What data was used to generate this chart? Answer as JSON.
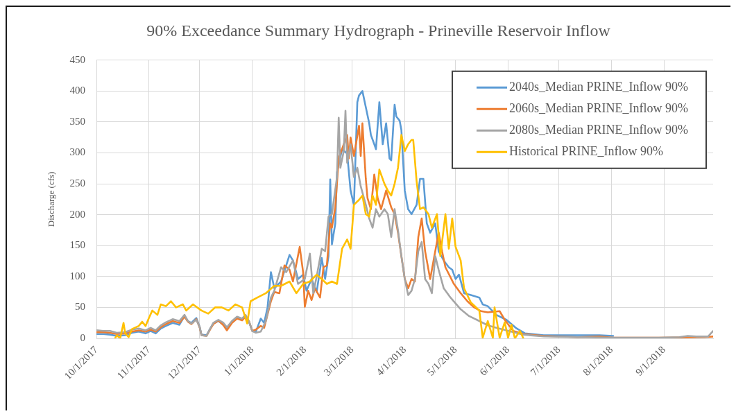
{
  "chart_data": {
    "type": "line",
    "title": "90% Exceedance Summary Hydrograph - Prineville Reservoir Inflow",
    "ylabel": "Discharge (cfs)",
    "xlim": [
      "2017-10-01",
      "2018-09-30"
    ],
    "xticks": [
      {
        "value": "2017-10-01",
        "label": "10/1/2017"
      },
      {
        "value": "2017-11-01",
        "label": "11/1/2017"
      },
      {
        "value": "2017-12-01",
        "label": "12/1/2017"
      },
      {
        "value": "2018-01-01",
        "label": "1/1/2018"
      },
      {
        "value": "2018-02-01",
        "label": "2/1/2018"
      },
      {
        "value": "2018-03-01",
        "label": "3/1/2018"
      },
      {
        "value": "2018-04-01",
        "label": "4/1/2018"
      },
      {
        "value": "2018-05-01",
        "label": "5/1/2018"
      },
      {
        "value": "2018-06-01",
        "label": "6/1/2018"
      },
      {
        "value": "2018-07-01",
        "label": "7/1/2018"
      },
      {
        "value": "2018-08-01",
        "label": "8/1/2018"
      },
      {
        "value": "2018-09-01",
        "label": "9/1/2018"
      }
    ],
    "ylim": [
      0,
      450
    ],
    "yticks": [
      0,
      50,
      100,
      150,
      200,
      250,
      300,
      350,
      400,
      450
    ],
    "grid": true,
    "legend": "top right",
    "series": [
      {
        "name": "2040s_Median PRINE_Inflow 90%",
        "color": "#5b9bd5",
        "x": [
          "2017-10-01",
          "2017-10-05",
          "2017-10-09",
          "2017-10-13",
          "2017-10-18",
          "2017-10-22",
          "2017-10-26",
          "2017-10-30",
          "2017-11-02",
          "2017-11-05",
          "2017-11-08",
          "2017-11-11",
          "2017-11-15",
          "2017-11-19",
          "2017-11-22",
          "2017-11-24",
          "2017-11-26",
          "2017-11-29",
          "2017-12-01",
          "2017-12-02",
          "2017-12-05",
          "2017-12-07",
          "2017-12-09",
          "2017-12-12",
          "2017-12-15",
          "2017-12-17",
          "2017-12-20",
          "2017-12-23",
          "2017-12-26",
          "2017-12-28",
          "2017-12-30",
          "2018-01-01",
          "2018-01-03",
          "2018-01-06",
          "2018-01-08",
          "2018-01-10",
          "2018-01-12",
          "2018-01-14",
          "2018-01-18",
          "2018-01-23",
          "2018-01-25",
          "2018-01-28",
          "2018-01-31",
          "2018-02-02",
          "2018-02-05",
          "2018-02-08",
          "2018-02-11",
          "2018-02-13",
          "2018-02-15",
          "2018-02-16",
          "2018-02-17",
          "2018-02-19",
          "2018-02-20",
          "2018-02-23",
          "2018-02-26",
          "2018-02-28",
          "2018-03-02",
          "2018-03-04",
          "2018-03-05",
          "2018-03-07",
          "2018-03-09",
          "2018-03-11",
          "2018-03-12",
          "2018-03-14",
          "2018-03-15",
          "2018-03-17",
          "2018-03-19",
          "2018-03-21",
          "2018-03-23",
          "2018-03-24",
          "2018-03-26",
          "2018-03-27",
          "2018-03-29",
          "2018-03-30",
          "2018-04-01",
          "2018-04-03",
          "2018-04-05",
          "2018-04-08",
          "2018-04-10",
          "2018-04-12",
          "2018-04-14",
          "2018-04-16",
          "2018-04-19",
          "2018-04-21",
          "2018-04-24",
          "2018-04-27",
          "2018-04-29",
          "2018-05-01",
          "2018-05-03",
          "2018-05-06",
          "2018-05-10",
          "2018-05-15",
          "2018-05-17",
          "2018-05-20",
          "2018-05-25",
          "2018-05-31",
          "2018-06-06",
          "2018-06-11",
          "2018-06-22",
          "2018-07-12",
          "2018-07-25",
          "2018-08-02"
        ],
        "values": [
          7,
          7,
          6,
          4,
          5,
          9,
          11,
          8,
          12,
          8,
          16,
          20,
          25,
          22,
          36,
          28,
          25,
          33,
          18,
          6,
          5,
          15,
          24,
          28,
          22,
          14,
          26,
          33,
          30,
          36,
          27,
          12,
          10,
          32,
          25,
          50,
          107,
          81,
          92,
          135,
          126,
          96,
          103,
          77,
          96,
          75,
          130,
          96,
          133,
          257,
          152,
          186,
          269,
          306,
          299,
          239,
          216,
          382,
          393,
          400,
          374,
          348,
          329,
          314,
          306,
          382,
          314,
          348,
          291,
          288,
          378,
          359,
          352,
          337,
          239,
          209,
          201,
          216,
          258,
          258,
          186,
          171,
          186,
          141,
          126,
          115,
          111,
          96,
          103,
          73,
          70,
          66,
          55,
          52,
          38,
          30,
          16,
          8,
          5,
          5,
          5,
          4
        ]
      },
      {
        "name": "2060s_Median PRINE_Inflow 90%",
        "color": "#ed7d31",
        "x": [
          "2017-10-01",
          "2017-10-05",
          "2017-10-09",
          "2017-10-13",
          "2017-10-18",
          "2017-10-22",
          "2017-10-26",
          "2017-10-30",
          "2017-11-02",
          "2017-11-05",
          "2017-11-08",
          "2017-11-11",
          "2017-11-15",
          "2017-11-19",
          "2017-11-22",
          "2017-11-24",
          "2017-11-26",
          "2017-11-29",
          "2017-12-01",
          "2017-12-02",
          "2017-12-05",
          "2017-12-07",
          "2017-12-09",
          "2017-12-12",
          "2017-12-15",
          "2017-12-17",
          "2017-12-20",
          "2017-12-23",
          "2017-12-26",
          "2017-12-28",
          "2017-12-30",
          "2018-01-01",
          "2018-01-03",
          "2018-01-06",
          "2018-01-08",
          "2018-01-12",
          "2018-01-14",
          "2018-01-17",
          "2018-01-20",
          "2018-01-23",
          "2018-01-25",
          "2018-01-29",
          "2018-01-31",
          "2018-02-01",
          "2018-02-03",
          "2018-02-05",
          "2018-02-07",
          "2018-02-10",
          "2018-02-12",
          "2018-02-14",
          "2018-02-16",
          "2018-02-17",
          "2018-02-19",
          "2018-02-21",
          "2018-02-24",
          "2018-02-26",
          "2018-02-27",
          "2018-02-28",
          "2018-03-02",
          "2018-03-05",
          "2018-03-06",
          "2018-03-07",
          "2018-03-09",
          "2018-03-10",
          "2018-03-12",
          "2018-03-14",
          "2018-03-16",
          "2018-03-18",
          "2018-03-21",
          "2018-03-24",
          "2018-03-26",
          "2018-03-28",
          "2018-03-30",
          "2018-04-01",
          "2018-04-03",
          "2018-04-05",
          "2018-04-07",
          "2018-04-09",
          "2018-04-11",
          "2018-04-13",
          "2018-04-16",
          "2018-04-19",
          "2018-04-21",
          "2018-04-23",
          "2018-04-25",
          "2018-04-30",
          "2018-05-04",
          "2018-05-08",
          "2018-05-12",
          "2018-05-16",
          "2018-05-20",
          "2018-05-27",
          "2018-05-30",
          "2018-06-04",
          "2018-06-10",
          "2018-06-22",
          "2018-07-12",
          "2018-07-25",
          "2018-08-02",
          "2018-08-29",
          "2018-09-25",
          "2018-09-30"
        ],
        "values": [
          10,
          10,
          9,
          7,
          8,
          11,
          13,
          11,
          14,
          11,
          18,
          23,
          28,
          25,
          35,
          27,
          23,
          31,
          17,
          5,
          4,
          14,
          23,
          29,
          21,
          13,
          25,
          32,
          29,
          35,
          28,
          12,
          14,
          20,
          17,
          60,
          75,
          73,
          118,
          111,
          92,
          148,
          107,
          51,
          77,
          62,
          81,
          66,
          115,
          118,
          186,
          179,
          212,
          291,
          314,
          329,
          291,
          325,
          295,
          344,
          295,
          348,
          258,
          227,
          209,
          265,
          227,
          209,
          239,
          212,
          201,
          171,
          133,
          96,
          81,
          96,
          92,
          164,
          194,
          141,
          96,
          141,
          171,
          141,
          115,
          88,
          73,
          60,
          50,
          44,
          42,
          44,
          30,
          12,
          7,
          4,
          2,
          3,
          1,
          1,
          2,
          3
        ]
      },
      {
        "name": "2080s_Median PRINE_Inflow 90%",
        "color": "#a5a5a5",
        "x": [
          "2017-10-01",
          "2017-10-05",
          "2017-10-09",
          "2017-10-13",
          "2017-10-18",
          "2017-10-22",
          "2017-10-26",
          "2017-10-30",
          "2017-11-02",
          "2017-11-05",
          "2017-11-08",
          "2017-11-11",
          "2017-11-15",
          "2017-11-19",
          "2017-11-22",
          "2017-11-24",
          "2017-11-26",
          "2017-11-29",
          "2017-12-01",
          "2017-12-02",
          "2017-12-05",
          "2017-12-07",
          "2017-12-09",
          "2017-12-12",
          "2017-12-15",
          "2017-12-17",
          "2017-12-20",
          "2017-12-23",
          "2017-12-26",
          "2017-12-28",
          "2017-12-30",
          "2018-01-01",
          "2018-01-03",
          "2018-01-06",
          "2018-01-09",
          "2018-01-12",
          "2018-01-14",
          "2018-01-18",
          "2018-01-21",
          "2018-01-25",
          "2018-01-28",
          "2018-02-01",
          "2018-02-04",
          "2018-02-06",
          "2018-02-08",
          "2018-02-11",
          "2018-02-13",
          "2018-02-15",
          "2018-02-17",
          "2018-02-20",
          "2018-02-21",
          "2018-02-22",
          "2018-02-24",
          "2018-02-25",
          "2018-02-26",
          "2018-02-28",
          "2018-03-02",
          "2018-03-04",
          "2018-03-06",
          "2018-03-09",
          "2018-03-11",
          "2018-03-13",
          "2018-03-15",
          "2018-03-17",
          "2018-03-20",
          "2018-03-22",
          "2018-03-24",
          "2018-03-26",
          "2018-03-28",
          "2018-03-30",
          "2018-04-01",
          "2018-04-03",
          "2018-04-05",
          "2018-04-07",
          "2018-04-09",
          "2018-04-11",
          "2018-04-13",
          "2018-04-15",
          "2018-04-17",
          "2018-04-19",
          "2018-04-21",
          "2018-04-24",
          "2018-04-28",
          "2018-05-04",
          "2018-05-09",
          "2018-05-15",
          "2018-05-20",
          "2018-05-25",
          "2018-05-31",
          "2018-06-10",
          "2018-06-22",
          "2018-07-12",
          "2018-08-02",
          "2018-08-29",
          "2018-09-10",
          "2018-09-15",
          "2018-09-20",
          "2018-09-27",
          "2018-09-30"
        ],
        "values": [
          13,
          12,
          12,
          9,
          10,
          14,
          16,
          13,
          17,
          13,
          21,
          26,
          31,
          28,
          38,
          28,
          24,
          30,
          18,
          5,
          4,
          15,
          25,
          30,
          25,
          18,
          28,
          35,
          32,
          38,
          28,
          12,
          9,
          11,
          28,
          66,
          77,
          115,
          107,
          126,
          88,
          96,
          137,
          73,
          100,
          145,
          141,
          197,
          201,
          261,
          357,
          276,
          303,
          368,
          284,
          314,
          261,
          276,
          246,
          216,
          194,
          179,
          209,
          197,
          209,
          201,
          164,
          209,
          175,
          133,
          96,
          70,
          77,
          96,
          141,
          156,
          96,
          88,
          73,
          133,
          111,
          81,
          66,
          47,
          36,
          28,
          21,
          17,
          13,
          6,
          3,
          2,
          1,
          1,
          2,
          4,
          3,
          3,
          12
        ]
      },
      {
        "name": "Historical PRINE_Inflow 90%",
        "color": "#ffc000",
        "x": [
          "2017-10-12",
          "2017-10-13",
          "2017-10-15",
          "2017-10-17",
          "2017-10-18",
          "2017-10-20",
          "2017-10-22",
          "2017-10-26",
          "2017-10-28",
          "2017-10-30",
          "2017-11-01",
          "2017-11-03",
          "2017-11-06",
          "2017-11-08",
          "2017-11-11",
          "2017-11-14",
          "2017-11-17",
          "2017-11-21",
          "2017-11-23",
          "2017-11-27",
          "2017-12-02",
          "2017-12-06",
          "2017-12-10",
          "2017-12-14",
          "2017-12-18",
          "2017-12-22",
          "2017-12-26",
          "2017-12-29",
          "2017-12-31",
          "2018-01-04",
          "2018-01-09",
          "2018-01-14",
          "2018-01-18",
          "2018-01-23",
          "2018-01-27",
          "2018-01-31",
          "2018-02-04",
          "2018-02-08",
          "2018-02-11",
          "2018-02-14",
          "2018-02-17",
          "2018-02-20",
          "2018-02-23",
          "2018-02-26",
          "2018-02-28",
          "2018-03-02",
          "2018-03-05",
          "2018-03-07",
          "2018-03-09",
          "2018-03-11",
          "2018-03-13",
          "2018-03-15",
          "2018-03-17",
          "2018-03-20",
          "2018-03-22",
          "2018-03-24",
          "2018-03-26",
          "2018-03-28",
          "2018-03-30",
          "2018-04-01",
          "2018-04-03",
          "2018-04-05",
          "2018-04-06",
          "2018-04-08",
          "2018-04-10",
          "2018-04-12",
          "2018-04-15",
          "2018-04-17",
          "2018-04-20",
          "2018-04-22",
          "2018-04-25",
          "2018-04-27",
          "2018-04-29",
          "2018-05-01",
          "2018-05-04",
          "2018-05-06",
          "2018-05-10",
          "2018-05-12",
          "2018-05-15",
          "2018-05-17",
          "2018-05-20",
          "2018-05-23",
          "2018-05-24",
          "2018-05-27",
          "2018-05-30",
          "2018-06-01",
          "2018-06-03",
          "2018-06-05",
          "2018-06-08",
          "2018-06-10"
        ],
        "values": [
          0,
          5,
          0,
          25,
          8,
          2,
          15,
          20,
          27,
          20,
          33,
          45,
          38,
          55,
          52,
          60,
          50,
          55,
          45,
          55,
          45,
          40,
          50,
          50,
          45,
          55,
          50,
          24,
          60,
          66,
          73,
          85,
          85,
          92,
          73,
          88,
          92,
          103,
          96,
          88,
          92,
          88,
          145,
          160,
          145,
          216,
          224,
          231,
          201,
          197,
          231,
          216,
          273,
          250,
          239,
          231,
          250,
          276,
          329,
          303,
          314,
          321,
          321,
          254,
          209,
          212,
          201,
          179,
          201,
          133,
          201,
          145,
          194,
          148,
          126,
          81,
          58,
          53,
          45,
          1,
          28,
          1,
          50,
          1,
          26,
          1,
          22,
          0,
          12,
          0
        ]
      }
    ]
  }
}
